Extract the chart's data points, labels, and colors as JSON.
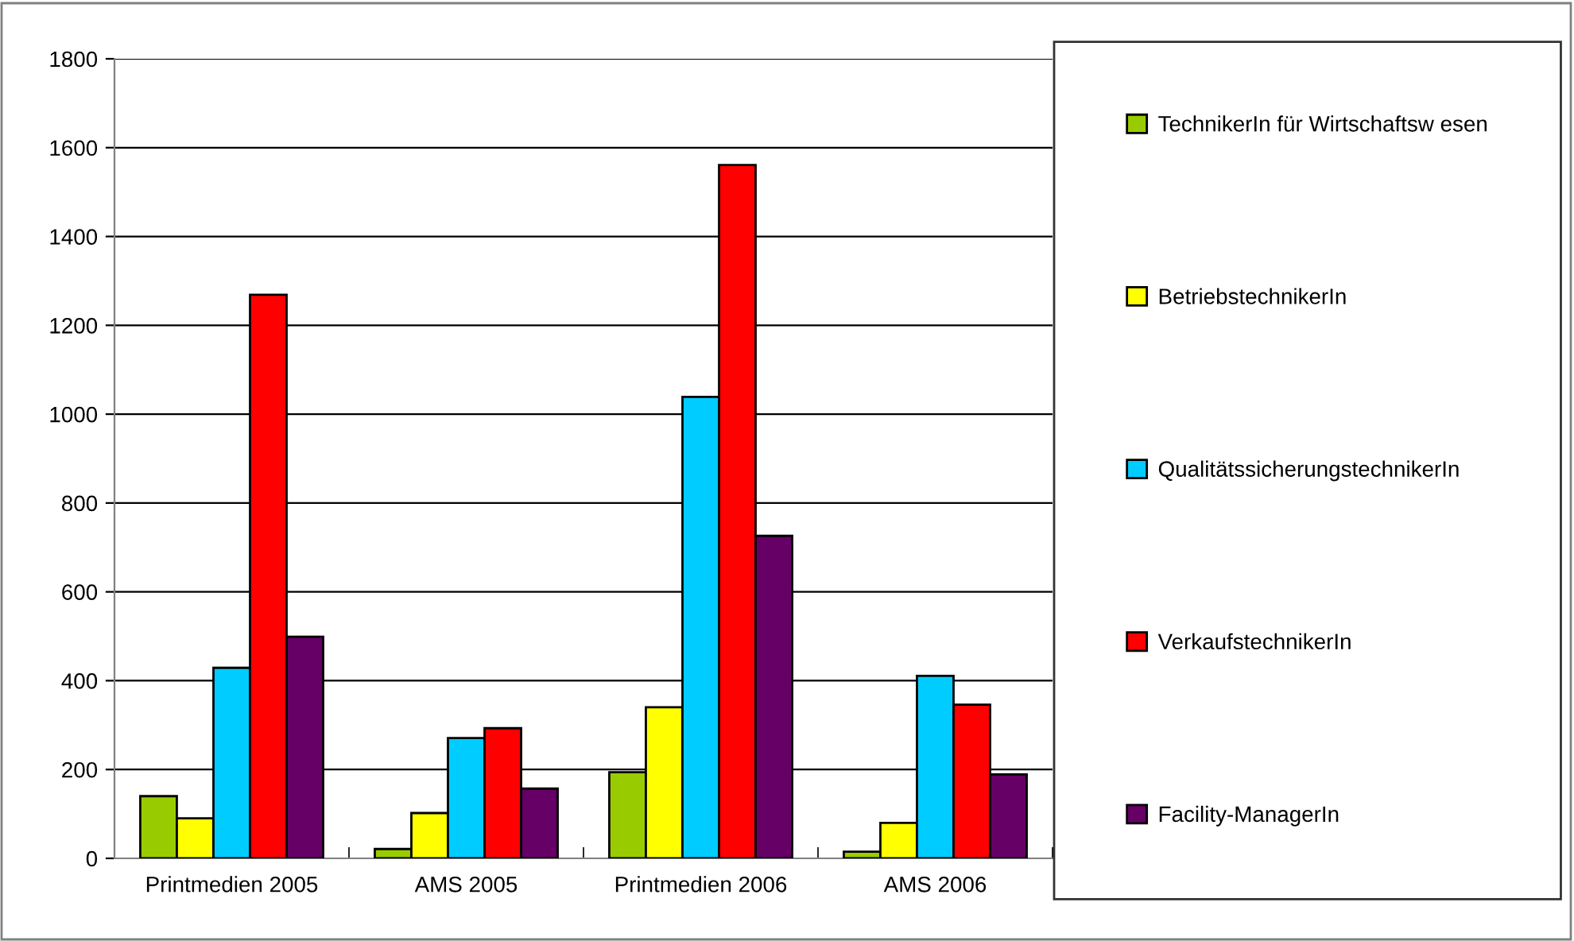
{
  "chart_data": {
    "type": "bar",
    "categories": [
      "Printmedien 2005",
      "AMS 2005",
      "Printmedien 2006",
      "AMS 2006"
    ],
    "series": [
      {
        "name": "TechnikerIn für Wirtschaftsw esen",
        "color": "#99cc00",
        "values": [
          140,
          21,
          194,
          15
        ]
      },
      {
        "name": "BetriebstechnikerIn",
        "color": "#ffff00",
        "values": [
          90,
          102,
          340,
          80
        ]
      },
      {
        "name": "QualitätssicherungstechnikerIn",
        "color": "#00ccff",
        "values": [
          429,
          271,
          1039,
          411
        ]
      },
      {
        "name": "VerkaufstechnikerIn",
        "color": "#ff0000",
        "values": [
          1269,
          293,
          1561,
          346
        ]
      },
      {
        "name": "Facility-ManagerIn",
        "color": "#660066",
        "values": [
          499,
          157,
          726,
          189
        ]
      }
    ],
    "ylim": [
      0,
      1800
    ],
    "yticks": [
      0,
      200,
      400,
      600,
      800,
      1000,
      1200,
      1400,
      1600,
      1800
    ],
    "grid": "y",
    "legend": "right"
  }
}
